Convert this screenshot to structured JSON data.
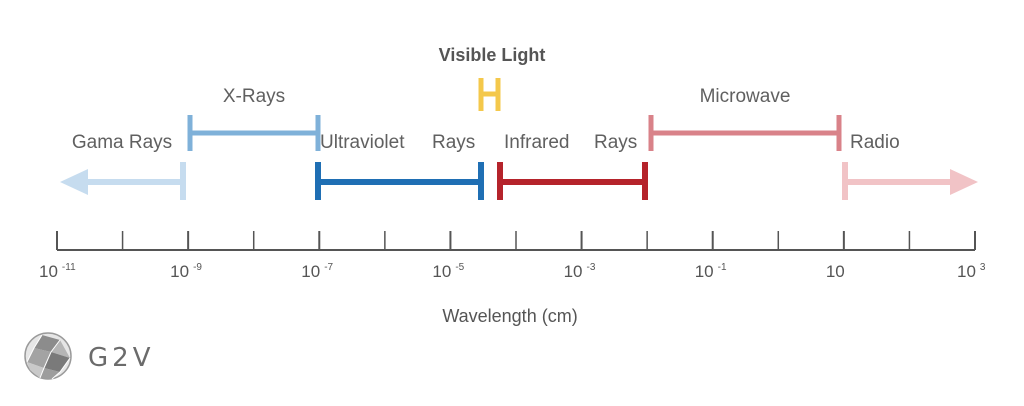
{
  "title": "Visible Light",
  "bands": {
    "gamma": "Gama Rays",
    "xray": "X-Rays",
    "uv": "Ultraviolet",
    "uv_rays": "Rays",
    "visible": "Visible Light",
    "ir": "Infrared",
    "ir_rays": "Rays",
    "microwave": "Microwave",
    "radio": "Radio"
  },
  "axis": {
    "title": "Wavelength (cm)",
    "ticks": [
      {
        "base": "10",
        "exp": "-11"
      },
      {
        "base": "10",
        "exp": "-9"
      },
      {
        "base": "10",
        "exp": "-7"
      },
      {
        "base": "10",
        "exp": "-5"
      },
      {
        "base": "10",
        "exp": "-3"
      },
      {
        "base": "10",
        "exp": "-1"
      },
      {
        "base": "10",
        "exp": ""
      },
      {
        "base": "10",
        "exp": "3"
      }
    ]
  },
  "colors": {
    "gamma": "#c6dcef",
    "xray": "#7fb1d9",
    "uv": "#1f6fb4",
    "visible": "#f4c84b",
    "ir": "#b5232b",
    "microwave": "#d98289",
    "radio": "#f1c3c6",
    "axis": "#555555"
  },
  "logo": {
    "text": "G2V",
    "icon": "geodesic-sphere-icon"
  }
}
